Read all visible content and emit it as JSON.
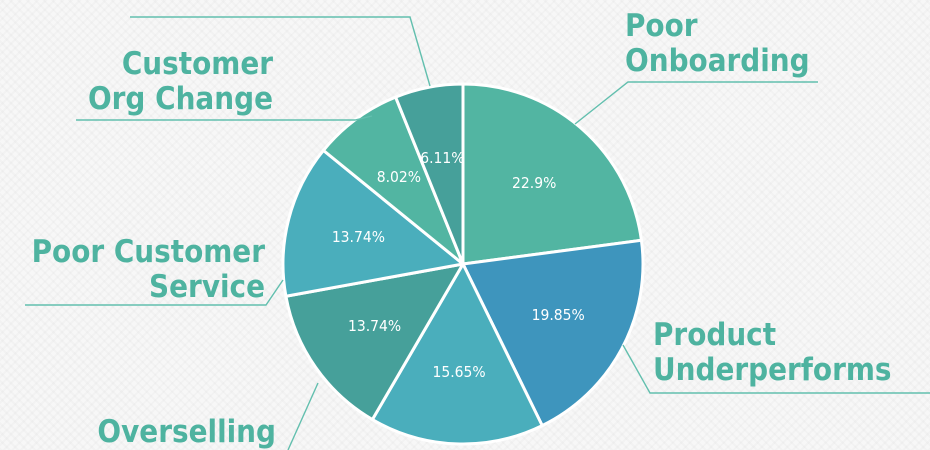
{
  "chart_data": {
    "type": "pie",
    "title": "",
    "start_angle_deg": 0,
    "direction": "clockwise",
    "slices": [
      {
        "label": [
          "Poor",
          "Onboarding"
        ],
        "value": 22.9,
        "value_label": "22.9%",
        "color": "#52b5a2"
      },
      {
        "label": [
          "Product",
          "Underperforms"
        ],
        "value": 19.85,
        "value_label": "19.85%",
        "color": "#3e95bd"
      },
      {
        "label": [],
        "value": 15.65,
        "value_label": "15.65%",
        "color": "#4aaebc"
      },
      {
        "label": [
          "Overselling"
        ],
        "value": 13.74,
        "value_label": "13.74%",
        "color": "#46a09a"
      },
      {
        "label": [
          "Poor Customer",
          "Service"
        ],
        "value": 13.74,
        "value_label": "13.74%",
        "color": "#4aaebc"
      },
      {
        "label": [
          "Customer",
          "Org Change"
        ],
        "value": 8.02,
        "value_label": "8.02%",
        "color": "#52b5a2"
      },
      {
        "label": [],
        "value": 6.11,
        "value_label": "6.11%",
        "color": "#46a09a"
      }
    ]
  }
}
